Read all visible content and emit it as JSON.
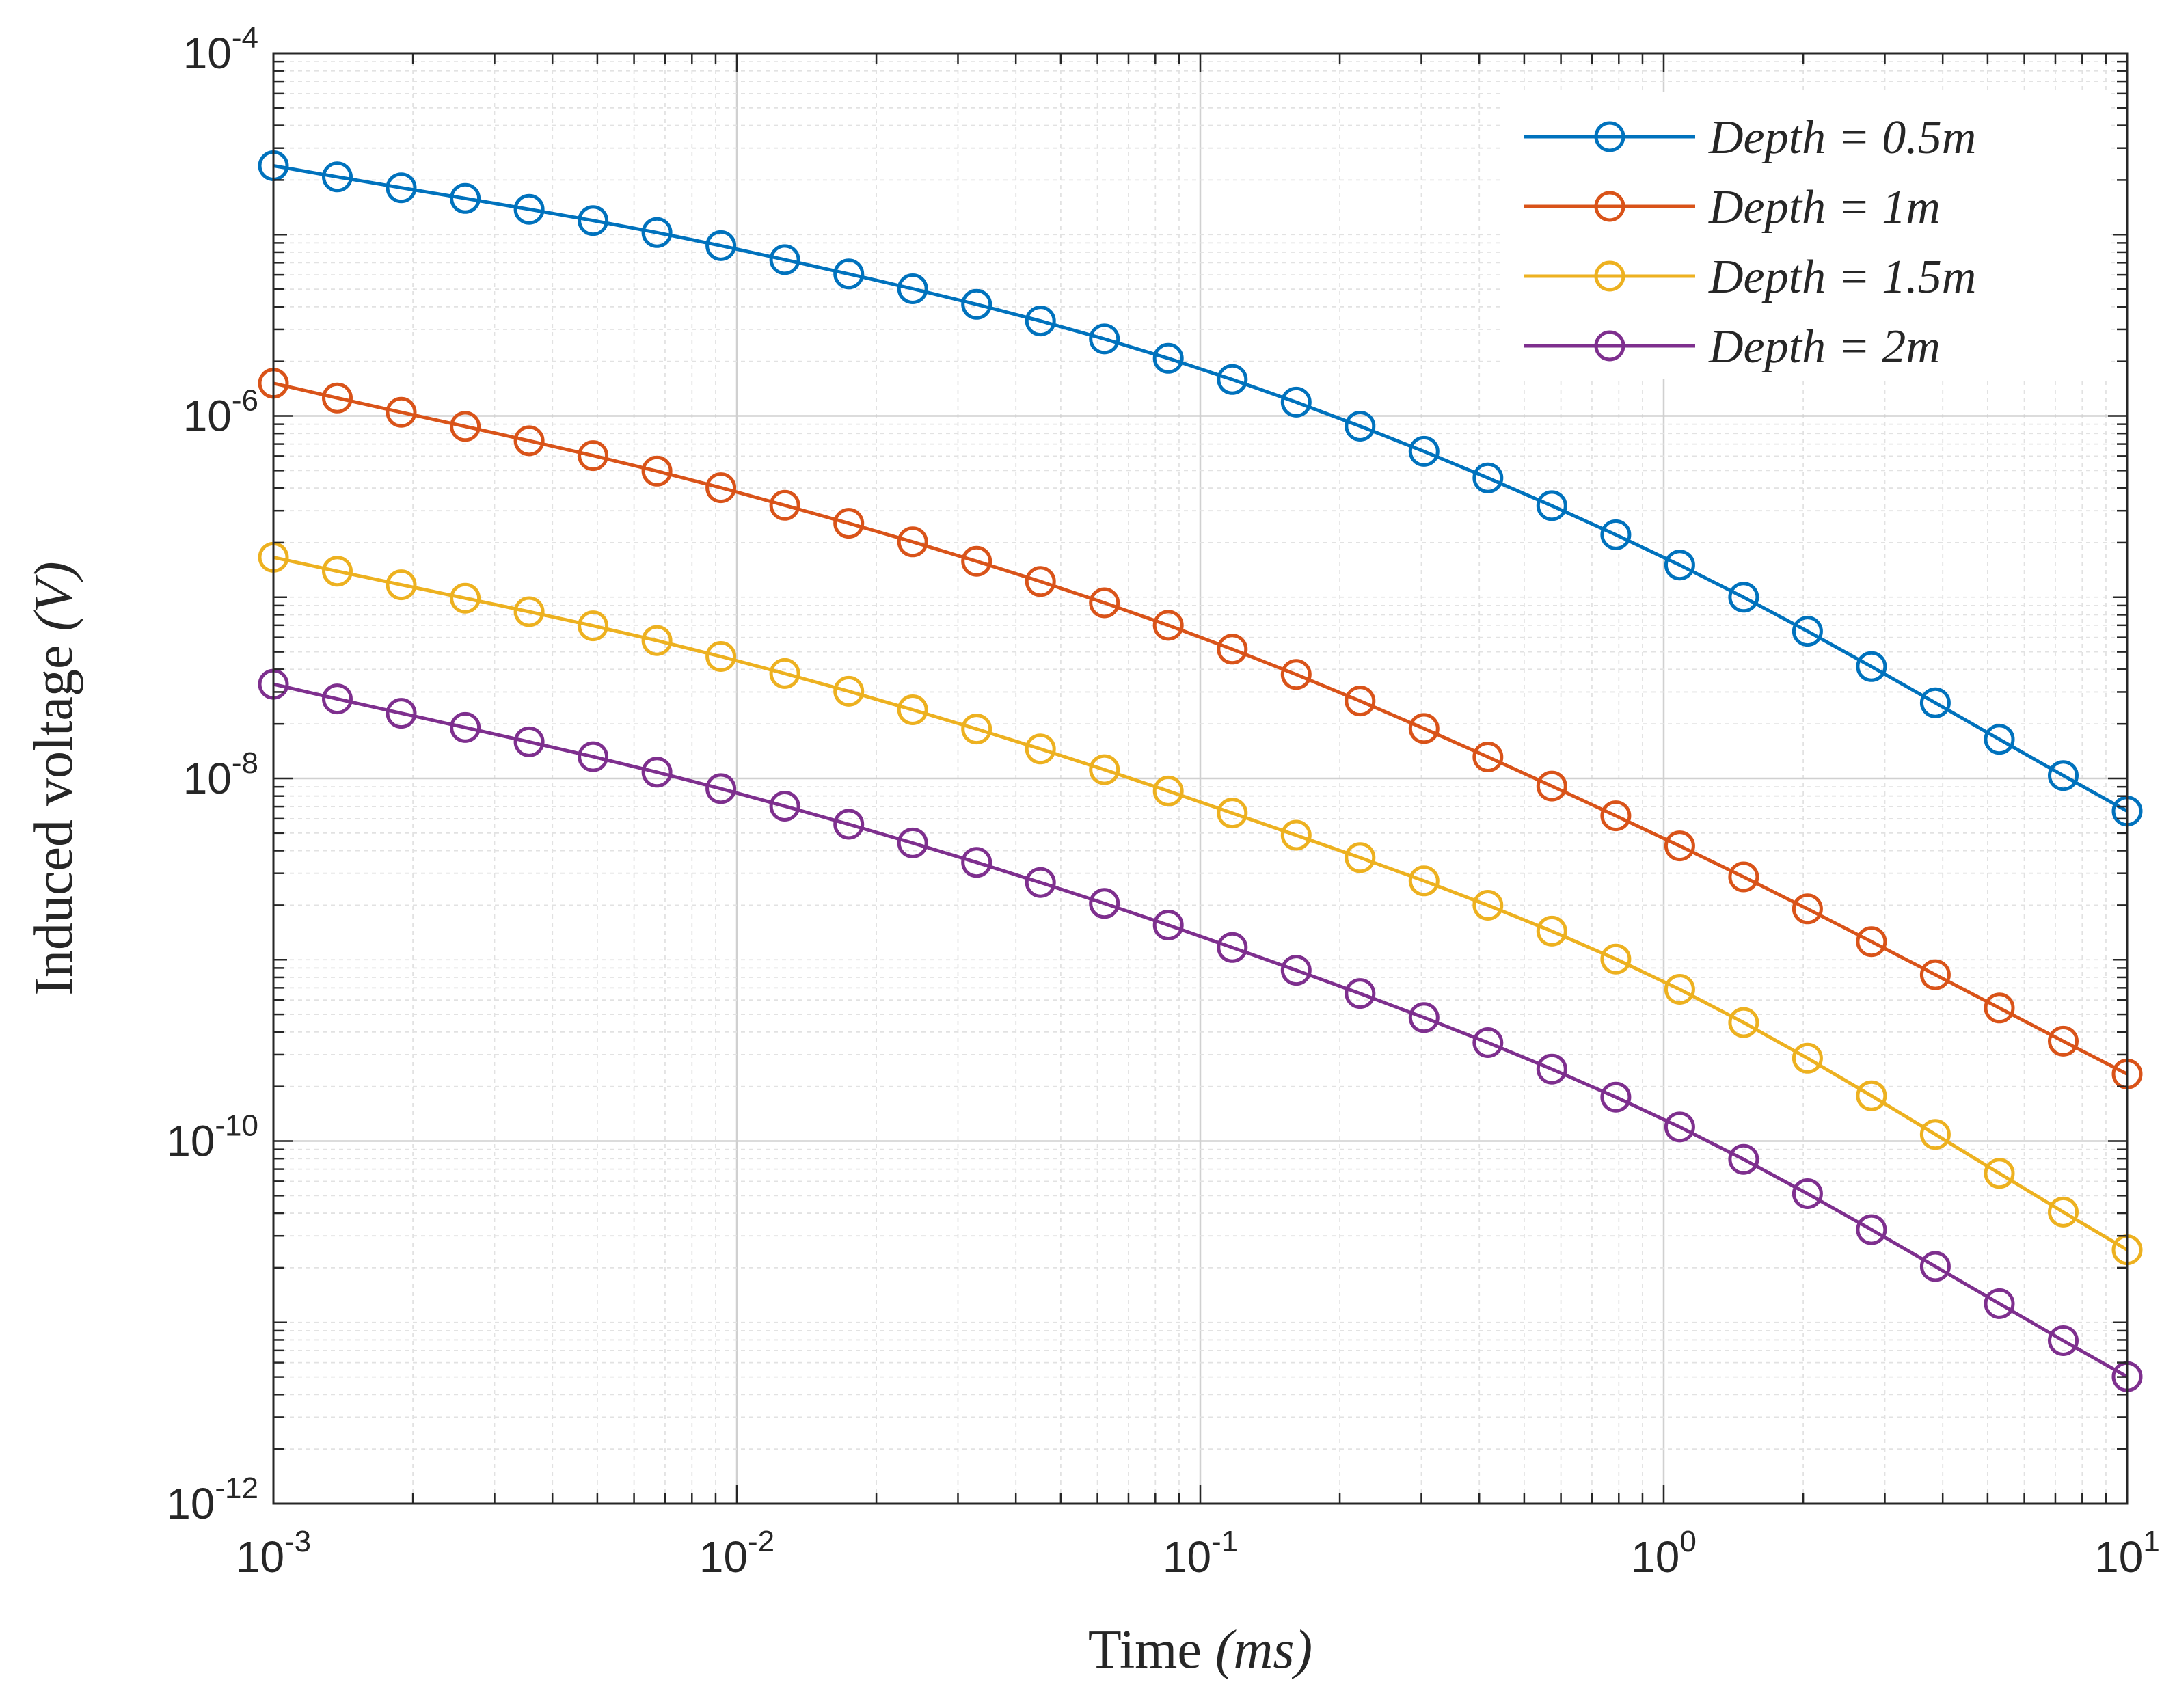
{
  "chart_data": {
    "type": "line",
    "x_scale": "log",
    "y_scale": "log",
    "xlim": [
      0.001,
      10
    ],
    "ylim": [
      1e-12,
      0.0001
    ],
    "grid": true,
    "legend_position": "top-right",
    "xlabel": {
      "text": "Time ",
      "unit": "(ms)"
    },
    "ylabel": {
      "text": "Induced voltage ",
      "unit": "(V)"
    },
    "x_ticks": [
      {
        "value": 0.001,
        "base": "10",
        "exp": "-3"
      },
      {
        "value": 0.01,
        "base": "10",
        "exp": "-2"
      },
      {
        "value": 0.1,
        "base": "10",
        "exp": "-1"
      },
      {
        "value": 1,
        "base": "10",
        "exp": "0"
      },
      {
        "value": 10,
        "base": "10",
        "exp": "1"
      }
    ],
    "y_ticks": [
      {
        "value": 1e-12,
        "base": "10",
        "exp": "-12"
      },
      {
        "value": 1e-10,
        "base": "10",
        "exp": "-10"
      },
      {
        "value": 1e-08,
        "base": "10",
        "exp": "-8"
      },
      {
        "value": 1e-06,
        "base": "10",
        "exp": "-6"
      },
      {
        "value": 0.0001,
        "base": "10",
        "exp": "-4"
      }
    ],
    "x_points": {
      "start": 0.001,
      "stop": 10,
      "count": 30,
      "spacing": "log"
    },
    "series": [
      {
        "name": "Depth = 0.5m",
        "color": "#0072BD",
        "log10_y_anchors": [
          {
            "log10_x": -3,
            "log10_y": -4.62
          },
          {
            "log10_x": -2,
            "log10_y": -5.08
          },
          {
            "log10_x": -1,
            "log10_y": -5.74
          },
          {
            "log10_x": 0,
            "log10_y": -6.78
          },
          {
            "log10_x": 1,
            "log10_y": -8.18
          }
        ]
      },
      {
        "name": "Depth = 1m",
        "color": "#D95319",
        "log10_y_anchors": [
          {
            "log10_x": -3,
            "log10_y": -5.82
          },
          {
            "log10_x": -2,
            "log10_y": -6.42
          },
          {
            "log10_x": -1,
            "log10_y": -7.22
          },
          {
            "log10_x": 0,
            "log10_y": -8.33
          },
          {
            "log10_x": 1,
            "log10_y": -9.63
          }
        ]
      },
      {
        "name": "Depth = 1.5m",
        "color": "#EDB120",
        "log10_y_anchors": [
          {
            "log10_x": -3,
            "log10_y": -6.78
          },
          {
            "log10_x": -2,
            "log10_y": -7.35
          },
          {
            "log10_x": -1,
            "log10_y": -8.13
          },
          {
            "log10_x": 0,
            "log10_y": -9.12
          },
          {
            "log10_x": 1,
            "log10_y": -10.6
          }
        ]
      },
      {
        "name": "Depth = 2m",
        "color": "#7E2F8E",
        "log10_y_anchors": [
          {
            "log10_x": -3,
            "log10_y": -7.48
          },
          {
            "log10_x": -2,
            "log10_y": -8.08
          },
          {
            "log10_x": -1,
            "log10_y": -8.87
          },
          {
            "log10_x": 0,
            "log10_y": -9.88
          },
          {
            "log10_x": 1,
            "log10_y": -11.3
          }
        ]
      }
    ],
    "legend": [
      {
        "label": "Depth = 0.5m",
        "color": "#0072BD"
      },
      {
        "label": "Depth = 1m",
        "color": "#D95319"
      },
      {
        "label": "Depth = 1.5m",
        "color": "#EDB120"
      },
      {
        "label": "Depth = 2m",
        "color": "#7E2F8E"
      }
    ]
  }
}
